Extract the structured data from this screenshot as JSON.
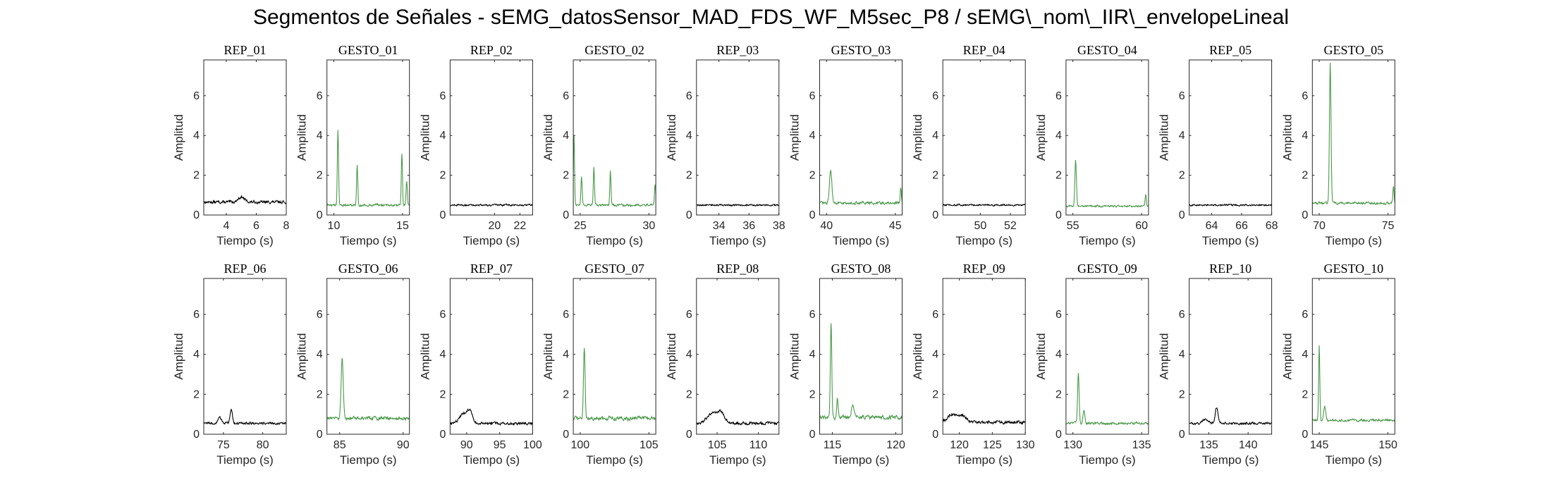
{
  "figure": {
    "suptitle": "Segmentos de Señales - sEMG_datosSensor_MAD_FDS_WF_M5sec_P8 / sEMG\\_nom\\_IIR\\_envelopeLineal"
  },
  "colors": {
    "rep": "#000000",
    "gesto": "#4a9a4a",
    "axis": "#262626"
  },
  "chart_data": [
    {
      "type": "line",
      "title": "REP_01",
      "xlabel": "Tiempo (s)",
      "ylabel": "Amplitud",
      "xlim": [
        2.5,
        8
      ],
      "ylim": [
        0,
        7.8
      ],
      "xticks": [
        4,
        6,
        8
      ],
      "yticks": [
        0,
        2,
        4,
        6
      ],
      "color": "#000000",
      "base": 0.65,
      "noise": 0.12,
      "peaks": [
        {
          "x": 5.0,
          "h": 0.25,
          "w": 0.3
        }
      ]
    },
    {
      "type": "line",
      "title": "GESTO_01",
      "xlabel": "Tiempo (s)",
      "ylabel": "Amplitud",
      "xlim": [
        9.5,
        15.5
      ],
      "ylim": [
        0,
        7.8
      ],
      "xticks": [
        10,
        15
      ],
      "yticks": [
        0,
        2,
        4,
        6
      ],
      "color": "#4a9a4a",
      "base": 0.5,
      "noise": 0.1,
      "peaks": [
        {
          "x": 10.3,
          "h": 3.8,
          "w": 0.06
        },
        {
          "x": 11.7,
          "h": 2.0,
          "w": 0.06
        },
        {
          "x": 14.95,
          "h": 2.6,
          "w": 0.06
        },
        {
          "x": 15.3,
          "h": 1.2,
          "w": 0.06
        }
      ]
    },
    {
      "type": "line",
      "title": "REP_02",
      "xlabel": "Tiempo (s)",
      "ylabel": "Amplitud",
      "xlim": [
        16.5,
        23
      ],
      "ylim": [
        0,
        7.8
      ],
      "xticks": [
        20,
        22
      ],
      "yticks": [
        0,
        2,
        4,
        6
      ],
      "color": "#000000",
      "base": 0.5,
      "noise": 0.07,
      "peaks": []
    },
    {
      "type": "line",
      "title": "GESTO_02",
      "xlabel": "Tiempo (s)",
      "ylabel": "Amplitud",
      "xlim": [
        24.5,
        30.5
      ],
      "ylim": [
        0,
        7.8
      ],
      "xticks": [
        25,
        30
      ],
      "yticks": [
        0,
        2,
        4,
        6
      ],
      "color": "#4a9a4a",
      "base": 0.5,
      "noise": 0.1,
      "peaks": [
        {
          "x": 24.55,
          "h": 3.5,
          "w": 0.06
        },
        {
          "x": 25.1,
          "h": 1.4,
          "w": 0.06
        },
        {
          "x": 26.0,
          "h": 1.9,
          "w": 0.06
        },
        {
          "x": 27.2,
          "h": 1.8,
          "w": 0.06
        },
        {
          "x": 30.45,
          "h": 1.0,
          "w": 0.06
        }
      ]
    },
    {
      "type": "line",
      "title": "REP_03",
      "xlabel": "Tiempo (s)",
      "ylabel": "Amplitud",
      "xlim": [
        32.5,
        38
      ],
      "ylim": [
        0,
        7.8
      ],
      "xticks": [
        34,
        36,
        38
      ],
      "yticks": [
        0,
        2,
        4,
        6
      ],
      "color": "#000000",
      "base": 0.5,
      "noise": 0.07,
      "peaks": []
    },
    {
      "type": "line",
      "title": "GESTO_03",
      "xlabel": "Tiempo (s)",
      "ylabel": "Amplitud",
      "xlim": [
        39.5,
        45.5
      ],
      "ylim": [
        0,
        7.8
      ],
      "xticks": [
        40,
        45
      ],
      "yticks": [
        0,
        2,
        4,
        6
      ],
      "color": "#4a9a4a",
      "base": 0.6,
      "noise": 0.12,
      "peaks": [
        {
          "x": 40.3,
          "h": 1.7,
          "w": 0.12
        },
        {
          "x": 45.4,
          "h": 0.8,
          "w": 0.06
        }
      ]
    },
    {
      "type": "line",
      "title": "REP_04",
      "xlabel": "Tiempo (s)",
      "ylabel": "Amplitud",
      "xlim": [
        47.5,
        53
      ],
      "ylim": [
        0,
        7.8
      ],
      "xticks": [
        50,
        52
      ],
      "yticks": [
        0,
        2,
        4,
        6
      ],
      "color": "#000000",
      "base": 0.5,
      "noise": 0.07,
      "peaks": []
    },
    {
      "type": "line",
      "title": "GESTO_04",
      "xlabel": "Tiempo (s)",
      "ylabel": "Amplitud",
      "xlim": [
        54.5,
        60.5
      ],
      "ylim": [
        0,
        7.8
      ],
      "xticks": [
        55,
        60
      ],
      "yticks": [
        0,
        2,
        4,
        6
      ],
      "color": "#4a9a4a",
      "base": 0.45,
      "noise": 0.08,
      "peaks": [
        {
          "x": 55.2,
          "h": 2.3,
          "w": 0.08
        },
        {
          "x": 60.3,
          "h": 0.6,
          "w": 0.06
        }
      ]
    },
    {
      "type": "line",
      "title": "REP_05",
      "xlabel": "Tiempo (s)",
      "ylabel": "Amplitud",
      "xlim": [
        62.5,
        68
      ],
      "ylim": [
        0,
        7.8
      ],
      "xticks": [
        64,
        66,
        68
      ],
      "yticks": [
        0,
        2,
        4,
        6
      ],
      "color": "#000000",
      "base": 0.5,
      "noise": 0.07,
      "peaks": []
    },
    {
      "type": "line",
      "title": "GESTO_05",
      "xlabel": "Tiempo (s)",
      "ylabel": "Amplitud",
      "xlim": [
        69.5,
        75.5
      ],
      "ylim": [
        0,
        7.8
      ],
      "xticks": [
        70,
        75
      ],
      "yticks": [
        0,
        2,
        4,
        6
      ],
      "color": "#4a9a4a",
      "base": 0.6,
      "noise": 0.1,
      "peaks": [
        {
          "x": 70.8,
          "h": 7.1,
          "w": 0.08
        },
        {
          "x": 75.4,
          "h": 0.9,
          "w": 0.06
        }
      ]
    },
    {
      "type": "line",
      "title": "REP_06",
      "xlabel": "Tiempo (s)",
      "ylabel": "Amplitud",
      "xlim": [
        72.5,
        83
      ],
      "ylim": [
        0,
        7.8
      ],
      "xticks": [
        75,
        80
      ],
      "yticks": [
        0,
        2,
        4,
        6
      ],
      "color": "#000000",
      "base": 0.55,
      "noise": 0.1,
      "peaks": [
        {
          "x": 76.0,
          "h": 0.7,
          "w": 0.2
        },
        {
          "x": 74.5,
          "h": 0.3,
          "w": 0.3
        }
      ]
    },
    {
      "type": "line",
      "title": "GESTO_06",
      "xlabel": "Tiempo (s)",
      "ylabel": "Amplitud",
      "xlim": [
        84,
        90.5
      ],
      "ylim": [
        0,
        7.8
      ],
      "xticks": [
        85,
        90
      ],
      "yticks": [
        0,
        2,
        4,
        6
      ],
      "color": "#4a9a4a",
      "base": 0.8,
      "noise": 0.14,
      "peaks": [
        {
          "x": 85.2,
          "h": 3.0,
          "w": 0.12
        }
      ]
    },
    {
      "type": "line",
      "title": "REP_07",
      "xlabel": "Tiempo (s)",
      "ylabel": "Amplitud",
      "xlim": [
        87.5,
        100
      ],
      "ylim": [
        0,
        7.8
      ],
      "xticks": [
        90,
        95,
        100
      ],
      "yticks": [
        0,
        2,
        4,
        6
      ],
      "color": "#000000",
      "base": 0.55,
      "noise": 0.12,
      "peaks": [
        {
          "x": 89.5,
          "h": 0.5,
          "w": 0.8
        },
        {
          "x": 90.5,
          "h": 0.6,
          "w": 0.5
        }
      ]
    },
    {
      "type": "line",
      "title": "GESTO_07",
      "xlabel": "Tiempo (s)",
      "ylabel": "Amplitud",
      "xlim": [
        99.5,
        105.5
      ],
      "ylim": [
        0,
        7.8
      ],
      "xticks": [
        100,
        105
      ],
      "yticks": [
        0,
        2,
        4,
        6
      ],
      "color": "#4a9a4a",
      "base": 0.8,
      "noise": 0.16,
      "peaks": [
        {
          "x": 100.3,
          "h": 3.6,
          "w": 0.08
        }
      ]
    },
    {
      "type": "line",
      "title": "REP_08",
      "xlabel": "Tiempo (s)",
      "ylabel": "Amplitud",
      "xlim": [
        102.5,
        112.5
      ],
      "ylim": [
        0,
        7.8
      ],
      "xticks": [
        105,
        110
      ],
      "yticks": [
        0,
        2,
        4,
        6
      ],
      "color": "#000000",
      "base": 0.55,
      "noise": 0.12,
      "peaks": [
        {
          "x": 104.5,
          "h": 0.5,
          "w": 1.0
        },
        {
          "x": 105.5,
          "h": 0.4,
          "w": 0.6
        }
      ]
    },
    {
      "type": "line",
      "title": "GESTO_08",
      "xlabel": "Tiempo (s)",
      "ylabel": "Amplitud",
      "xlim": [
        114,
        120.5
      ],
      "ylim": [
        0,
        7.8
      ],
      "xticks": [
        115,
        120
      ],
      "yticks": [
        0,
        2,
        4,
        6
      ],
      "color": "#4a9a4a",
      "base": 0.85,
      "noise": 0.16,
      "peaks": [
        {
          "x": 114.9,
          "h": 4.7,
          "w": 0.08
        },
        {
          "x": 115.4,
          "h": 1.0,
          "w": 0.08
        },
        {
          "x": 116.6,
          "h": 0.6,
          "w": 0.15
        }
      ]
    },
    {
      "type": "line",
      "title": "REP_09",
      "xlabel": "Tiempo (s)",
      "ylabel": "Amplitud",
      "xlim": [
        117.5,
        130
      ],
      "ylim": [
        0,
        7.8
      ],
      "xticks": [
        120,
        125,
        130
      ],
      "yticks": [
        0,
        2,
        4,
        6
      ],
      "color": "#000000",
      "base": 0.6,
      "noise": 0.12,
      "peaks": [
        {
          "x": 119.0,
          "h": 0.4,
          "w": 1.0
        },
        {
          "x": 120.5,
          "h": 0.3,
          "w": 0.8
        }
      ]
    },
    {
      "type": "line",
      "title": "GESTO_09",
      "xlabel": "Tiempo (s)",
      "ylabel": "Amplitud",
      "xlim": [
        129.5,
        135.5
      ],
      "ylim": [
        0,
        7.8
      ],
      "xticks": [
        130,
        135
      ],
      "yticks": [
        0,
        2,
        4,
        6
      ],
      "color": "#4a9a4a",
      "base": 0.55,
      "noise": 0.1,
      "peaks": [
        {
          "x": 130.4,
          "h": 2.5,
          "w": 0.08
        },
        {
          "x": 130.8,
          "h": 0.6,
          "w": 0.1
        }
      ]
    },
    {
      "type": "line",
      "title": "REP_10",
      "xlabel": "Tiempo (s)",
      "ylabel": "Amplitud",
      "xlim": [
        132.5,
        143
      ],
      "ylim": [
        0,
        7.8
      ],
      "xticks": [
        135,
        140
      ],
      "yticks": [
        0,
        2,
        4,
        6
      ],
      "color": "#000000",
      "base": 0.55,
      "noise": 0.1,
      "peaks": [
        {
          "x": 136.0,
          "h": 0.8,
          "w": 0.25
        },
        {
          "x": 134.5,
          "h": 0.2,
          "w": 0.5
        }
      ]
    },
    {
      "type": "line",
      "title": "GESTO_10",
      "xlabel": "Tiempo (s)",
      "ylabel": "Amplitud",
      "xlim": [
        144.5,
        150.5
      ],
      "ylim": [
        0,
        7.8
      ],
      "xticks": [
        145,
        150
      ],
      "yticks": [
        0,
        2,
        4,
        6
      ],
      "color": "#4a9a4a",
      "base": 0.7,
      "noise": 0.1,
      "peaks": [
        {
          "x": 145.0,
          "h": 3.8,
          "w": 0.06
        },
        {
          "x": 145.4,
          "h": 0.7,
          "w": 0.1
        }
      ]
    }
  ]
}
